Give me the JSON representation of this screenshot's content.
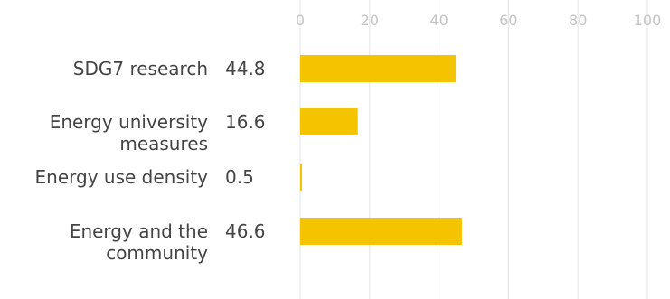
{
  "chart_data": {
    "type": "bar",
    "orientation": "horizontal",
    "title": "",
    "xlabel": "",
    "ylabel": "",
    "xlim": [
      0,
      100
    ],
    "ticks": [
      0,
      20,
      40,
      60,
      80,
      100
    ],
    "tick_labels": [
      "0",
      "20",
      "40",
      "60",
      "80",
      "100"
    ],
    "grid": true,
    "legend": "none",
    "bar_color": "#f5c400",
    "categories": [
      [
        "SDG7 research"
      ],
      [
        "Energy university",
        "measures"
      ],
      [
        "Energy use density"
      ],
      [
        "Energy and the",
        "community"
      ]
    ],
    "values": [
      44.8,
      16.6,
      0.5,
      46.6
    ],
    "value_labels": [
      "44.8",
      "16.6",
      "0.5",
      "46.6"
    ]
  }
}
